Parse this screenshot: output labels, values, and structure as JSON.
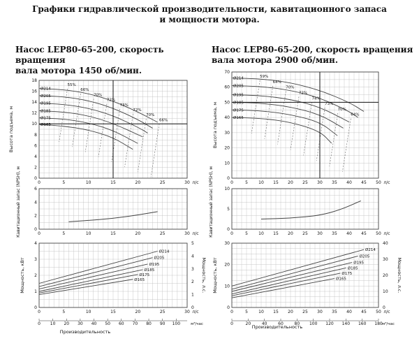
{
  "header": {
    "line1": "Графики гидравлической производительности, кавитационного запаса",
    "line2": "и мощности мотора."
  },
  "panels": [
    {
      "title1": "Насос LEP80-65-200, скорость вращения",
      "title2": "вала мотора 1450 об/мин.",
      "head_ylabel": "Высота подъема, м",
      "npsh_ylabel": "Кавитационный запас (NPSH), м",
      "power_ylabel_left": "Мощность, кВт",
      "power_ylabel_right": "Мощность, л.с.",
      "xlabel": "Производительность"
    },
    {
      "title1": "Насос LEP80-65-200, скорость вращения",
      "title2": "вала мотора 2900 об/мин.",
      "head_ylabel": "Высота подъема, м",
      "npsh_ylabel": "Кавитационный запас (NPSH), м",
      "power_ylabel_left": "Мощность, кВт",
      "power_ylabel_right": "Мощность, л.с.",
      "xlabel": "Производительность"
    }
  ],
  "colors": {
    "curve": "#444444",
    "grid": "#bbbbbb",
    "refline": "#111111",
    "efficiency": "#666666"
  },
  "chart_data": [
    {
      "type": "line",
      "panel": "1450 об/мин — напор",
      "xlim": [
        0,
        30
      ],
      "ylim": [
        0,
        18
      ],
      "x_ticks": [
        "0",
        "5",
        "10",
        "15",
        "20",
        "25",
        "30"
      ],
      "x_unit": "л/с",
      "y_ticks": [
        "0",
        "2",
        "4",
        "6",
        "8",
        "10",
        "12",
        "14",
        "16",
        "18"
      ],
      "series": [
        {
          "name": "Ø214",
          "x": [
            0,
            5,
            10,
            15,
            20,
            24
          ],
          "y": [
            16.5,
            16.3,
            15.6,
            14.2,
            12.2,
            10.3
          ]
        },
        {
          "name": "Ø205",
          "x": [
            0,
            5,
            10,
            15,
            20,
            23
          ],
          "y": [
            15.2,
            15.0,
            14.3,
            12.9,
            10.8,
            9.2
          ]
        },
        {
          "name": "Ø195",
          "x": [
            0,
            5,
            10,
            15,
            20,
            22
          ],
          "y": [
            13.8,
            13.6,
            12.9,
            11.5,
            9.4,
            8.3
          ]
        },
        {
          "name": "Ø185",
          "x": [
            0,
            5,
            10,
            15,
            21
          ],
          "y": [
            12.4,
            12.2,
            11.5,
            10.1,
            7.6
          ]
        },
        {
          "name": "Ø175",
          "x": [
            0,
            5,
            10,
            15,
            20
          ],
          "y": [
            11.1,
            10.9,
            10.2,
            8.8,
            6.4
          ]
        },
        {
          "name": "Ø165",
          "x": [
            0,
            5,
            10,
            15,
            19
          ],
          "y": [
            9.9,
            9.6,
            8.9,
            7.5,
            5.3
          ]
        }
      ],
      "efficiency_labels": [
        "55%",
        "66%",
        "70%",
        "72%",
        "73%",
        "72%",
        "70%",
        "66%"
      ]
    },
    {
      "type": "line",
      "panel": "1450 об/мин — NPSH",
      "xlim": [
        0,
        30
      ],
      "ylim": [
        0,
        6
      ],
      "x_ticks": [
        "0",
        "5",
        "10",
        "15",
        "20",
        "25",
        "30"
      ],
      "x_unit": "л/с",
      "y_ticks": [
        "0",
        "2",
        "4",
        "6"
      ],
      "series": [
        {
          "x": [
            6,
            10,
            15,
            20,
            24
          ],
          "y": [
            1.1,
            1.3,
            1.6,
            2.1,
            2.6
          ]
        }
      ]
    },
    {
      "type": "line",
      "panel": "1450 об/мин — мощность",
      "xlim": [
        0,
        30
      ],
      "ylim": [
        0,
        4
      ],
      "x_ticks": [
        "0",
        "5",
        "10",
        "15",
        "20",
        "25",
        "30"
      ],
      "x_unit": "л/с",
      "y_ticks": [
        "0",
        "1",
        "2",
        "3",
        "4"
      ],
      "y2_ticks": [
        "0",
        "1",
        "2",
        "3",
        "4",
        "5"
      ],
      "m3_ticks": [
        "0",
        "10",
        "20",
        "30",
        "40",
        "50",
        "60",
        "70",
        "80",
        "90",
        "100"
      ],
      "m3_unit": "м³/час",
      "series": [
        {
          "name": "Ø214",
          "x": [
            0,
            24
          ],
          "y": [
            1.5,
            3.5
          ]
        },
        {
          "name": "Ø205",
          "x": [
            0,
            23
          ],
          "y": [
            1.3,
            3.1
          ]
        },
        {
          "name": "Ø195",
          "x": [
            0,
            22
          ],
          "y": [
            1.15,
            2.7
          ]
        },
        {
          "name": "Ø185",
          "x": [
            0,
            21
          ],
          "y": [
            1.0,
            2.35
          ]
        },
        {
          "name": "Ø175",
          "x": [
            0,
            20
          ],
          "y": [
            0.9,
            2.05
          ]
        },
        {
          "name": "Ø165",
          "x": [
            0,
            19
          ],
          "y": [
            0.8,
            1.75
          ]
        }
      ]
    },
    {
      "type": "line",
      "panel": "2900 об/мин — напор",
      "xlim": [
        0,
        50
      ],
      "ylim": [
        0,
        70
      ],
      "x_ticks": [
        "0",
        "5",
        "10",
        "15",
        "20",
        "25",
        "30",
        "35",
        "40",
        "45",
        "50"
      ],
      "x_unit": "л/с",
      "y_ticks": [
        "0",
        "10",
        "20",
        "30",
        "40",
        "50",
        "60",
        "70"
      ],
      "series": [
        {
          "name": "Ø214",
          "x": [
            0,
            10,
            20,
            30,
            40,
            45
          ],
          "y": [
            66,
            65.5,
            63,
            58,
            50,
            44
          ]
        },
        {
          "name": "Ø205",
          "x": [
            0,
            10,
            20,
            30,
            40,
            43
          ],
          "y": [
            61,
            60.5,
            58,
            53,
            44,
            40
          ]
        },
        {
          "name": "Ø195",
          "x": [
            0,
            10,
            20,
            30,
            40
          ],
          "y": [
            55,
            54.5,
            52,
            47,
            37
          ]
        },
        {
          "name": "Ø185",
          "x": [
            0,
            10,
            20,
            30,
            38
          ],
          "y": [
            50,
            49.5,
            47,
            42,
            33
          ]
        },
        {
          "name": "Ø175",
          "x": [
            0,
            10,
            20,
            30,
            36
          ],
          "y": [
            45,
            44.5,
            42,
            37,
            28
          ]
        },
        {
          "name": "Ø165",
          "x": [
            0,
            10,
            20,
            30,
            34
          ],
          "y": [
            40,
            39.5,
            37,
            31,
            23
          ]
        }
      ],
      "efficiency_labels": [
        "59%",
        "64%",
        "70%",
        "72%",
        "74%",
        "73%",
        "70%",
        "64%"
      ]
    },
    {
      "type": "line",
      "panel": "2900 об/мин — NPSH",
      "xlim": [
        0,
        50
      ],
      "ylim": [
        0,
        10
      ],
      "x_ticks": [
        "0",
        "5",
        "10",
        "15",
        "20",
        "25",
        "30",
        "35",
        "40",
        "45",
        "50"
      ],
      "x_unit": "л/с",
      "y_ticks": [
        "0",
        "5",
        "10"
      ],
      "series": [
        {
          "x": [
            10,
            20,
            30,
            37,
            44
          ],
          "y": [
            2.5,
            2.7,
            3.4,
            4.8,
            7.0
          ]
        }
      ]
    },
    {
      "type": "line",
      "panel": "2900 об/мин — мощность",
      "xlim": [
        0,
        50
      ],
      "ylim": [
        0,
        30
      ],
      "x_ticks": [
        "0",
        "5",
        "10",
        "15",
        "20",
        "25",
        "30",
        "35",
        "40",
        "45",
        "50"
      ],
      "x_unit": "л/с",
      "y_ticks": [
        "0",
        "10",
        "20",
        "30"
      ],
      "y2_ticks": [
        "0",
        "10",
        "20",
        "30",
        "40"
      ],
      "m3_ticks": [
        "0",
        "20",
        "40",
        "60",
        "80",
        "100",
        "120",
        "140",
        "160",
        "180"
      ],
      "m3_unit": "м³/час",
      "series": [
        {
          "name": "Ø214",
          "x": [
            0,
            45
          ],
          "y": [
            10,
            27
          ]
        },
        {
          "name": "Ø205",
          "x": [
            0,
            43
          ],
          "y": [
            8.5,
            24
          ]
        },
        {
          "name": "Ø195",
          "x": [
            0,
            41
          ],
          "y": [
            7.5,
            21
          ]
        },
        {
          "name": "Ø185",
          "x": [
            0,
            39
          ],
          "y": [
            6.3,
            18.5
          ]
        },
        {
          "name": "Ø175",
          "x": [
            0,
            37
          ],
          "y": [
            5.5,
            16
          ]
        },
        {
          "name": "Ø165",
          "x": [
            0,
            35
          ],
          "y": [
            4.5,
            13.5
          ]
        }
      ]
    }
  ]
}
